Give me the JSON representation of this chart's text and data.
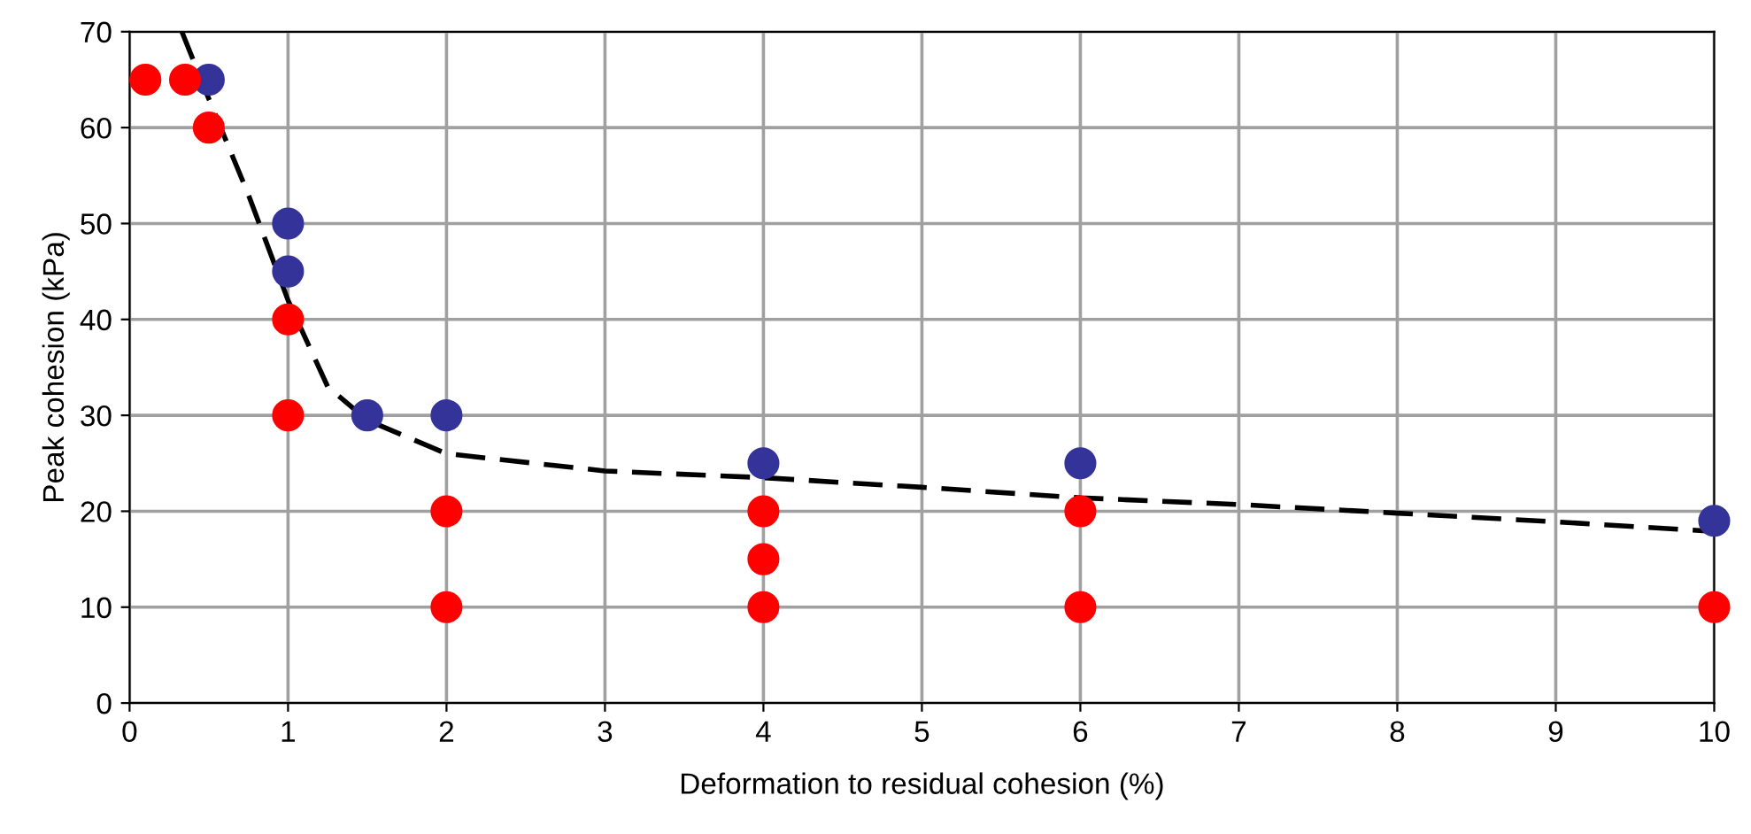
{
  "chart_data": {
    "type": "scatter",
    "xlabel": "Deformation to residual cohesion (%)",
    "ylabel": "Peak cohesion (kPa)",
    "xlim": [
      0,
      10
    ],
    "xticks": [
      0,
      1,
      2,
      3,
      4,
      5,
      6,
      7,
      8,
      9,
      10
    ],
    "ylim": [
      0,
      70
    ],
    "yticks": [
      0,
      10,
      20,
      30,
      40,
      50,
      60,
      70
    ],
    "grid": true,
    "legend": false,
    "marker": "circle",
    "series": [
      {
        "type": "line",
        "color": "#000000",
        "line_style": "dashed",
        "marker": "none",
        "x": [
          0.33,
          0.5,
          0.75,
          1,
          1.25,
          1.5,
          2,
          3,
          4,
          5,
          6,
          7,
          8,
          9,
          10
        ],
        "values": [
          70,
          63,
          53,
          42,
          33,
          29.5,
          26,
          24.2,
          23.5,
          22.5,
          21.4,
          20.7,
          19.8,
          18.9,
          17.9
        ]
      },
      {
        "color": "#333399",
        "x": [
          0.5,
          1,
          1,
          1.5,
          2,
          4,
          6,
          10
        ],
        "values": [
          65,
          50,
          45,
          30,
          30,
          25,
          25,
          19
        ]
      },
      {
        "color": "#ff0000",
        "x": [
          0.1,
          0.35,
          0.5,
          1,
          1,
          2,
          2,
          4,
          4,
          4,
          6,
          6,
          10
        ],
        "values": [
          65,
          65,
          60,
          40,
          30,
          20,
          10,
          20,
          15,
          10,
          20,
          10,
          10
        ]
      }
    ]
  }
}
